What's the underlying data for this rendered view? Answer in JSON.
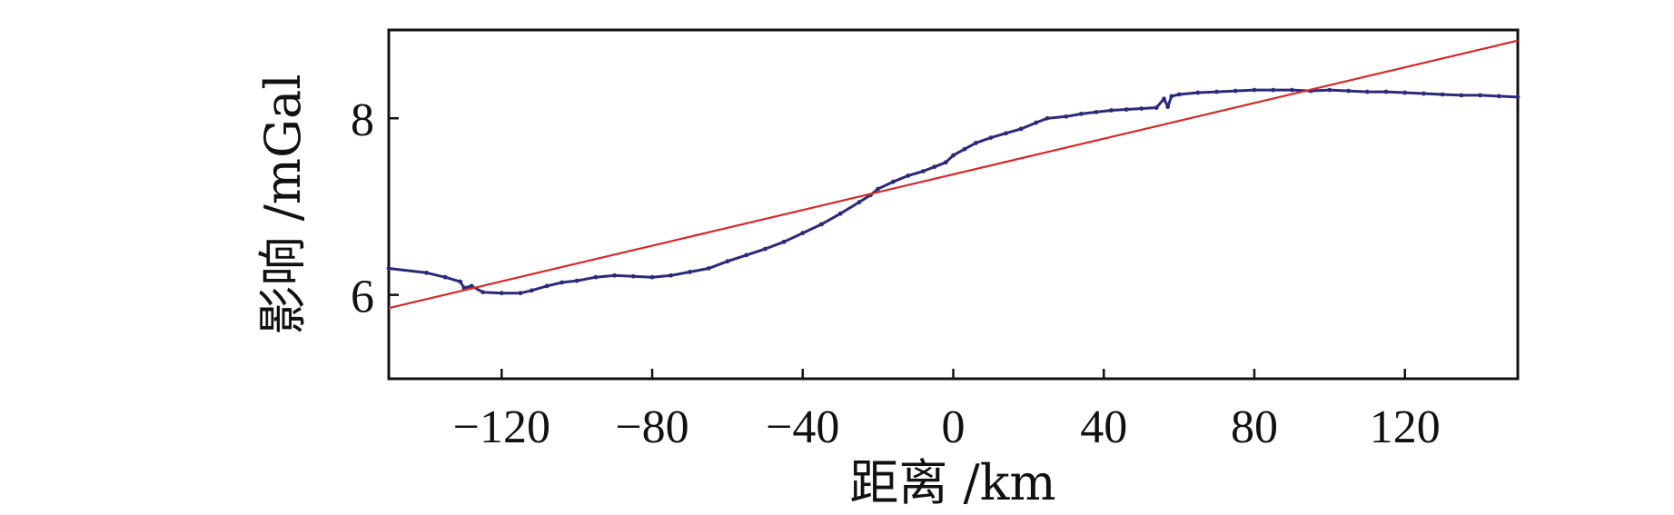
{
  "chart_data": {
    "type": "line",
    "xlabel": "距离 /km",
    "ylabel": "影响 /mGal",
    "xlim": [
      -150,
      150
    ],
    "ylim": [
      5.05,
      9.0
    ],
    "xticks": [
      -120,
      -80,
      -40,
      0,
      40,
      80,
      120
    ],
    "xtick_labels": [
      "−120",
      "−80",
      "−40",
      "0",
      "40",
      "80",
      "120"
    ],
    "yticks": [
      6,
      8
    ],
    "ytick_labels": [
      "6",
      "8"
    ],
    "grid": false,
    "legend": "none",
    "series": [
      {
        "color": "#2b2a7a",
        "style": "line-with-markers",
        "x": [
          -150,
          -140,
          -135,
          -131,
          -130,
          -128,
          -125,
          -120,
          -115,
          -112,
          -108,
          -104,
          -100,
          -95,
          -90,
          -85,
          -80,
          -75,
          -70,
          -65,
          -60,
          -55,
          -50,
          -45,
          -40,
          -35,
          -30,
          -25,
          -22,
          -20,
          -16,
          -12,
          -8,
          -5,
          -2,
          0,
          3,
          6,
          10,
          14,
          18,
          22,
          25,
          30,
          34,
          38,
          42,
          46,
          50,
          54,
          56,
          57,
          58,
          60,
          65,
          70,
          75,
          80,
          85,
          90,
          95,
          100,
          105,
          110,
          115,
          120,
          125,
          130,
          135,
          140,
          145,
          150
        ],
        "y": [
          6.3,
          6.25,
          6.2,
          6.15,
          6.08,
          6.1,
          6.03,
          6.02,
          6.02,
          6.05,
          6.1,
          6.14,
          6.16,
          6.2,
          6.22,
          6.21,
          6.2,
          6.22,
          6.26,
          6.3,
          6.38,
          6.45,
          6.52,
          6.6,
          6.7,
          6.8,
          6.92,
          7.05,
          7.13,
          7.2,
          7.28,
          7.35,
          7.4,
          7.45,
          7.5,
          7.58,
          7.65,
          7.72,
          7.78,
          7.83,
          7.88,
          7.95,
          8.0,
          8.02,
          8.05,
          8.07,
          8.09,
          8.1,
          8.11,
          8.12,
          8.22,
          8.13,
          8.25,
          8.27,
          8.29,
          8.3,
          8.31,
          8.32,
          8.32,
          8.32,
          8.31,
          8.32,
          8.31,
          8.3,
          8.3,
          8.29,
          8.28,
          8.27,
          8.26,
          8.26,
          8.25,
          8.24
        ]
      },
      {
        "color": "#d42a2a",
        "style": "line",
        "x": [
          -150,
          150
        ],
        "y": [
          5.85,
          8.88
        ]
      }
    ]
  }
}
